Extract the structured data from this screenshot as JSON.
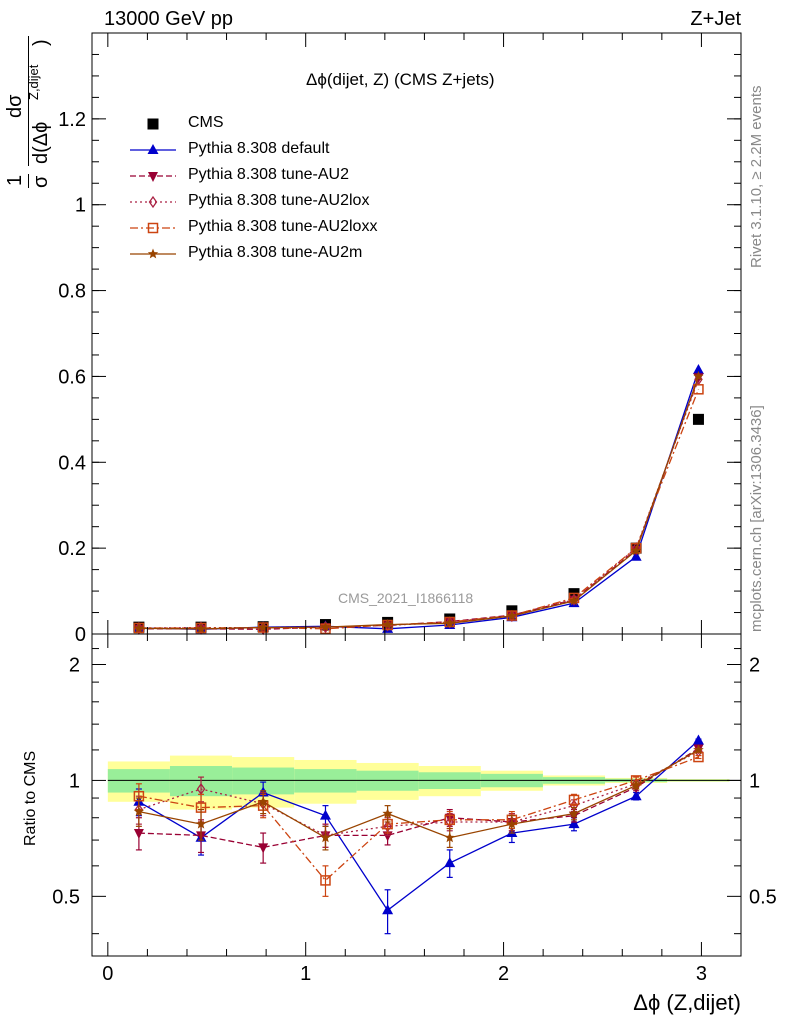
{
  "header": {
    "left": "13000 GeV pp",
    "right": "Z+Jet"
  },
  "side_notes": {
    "rivet": "Rivet 3.1.10, ≥ 2.2M events",
    "mcplots": "mcplots.cern.ch [arXiv:1306.3436]"
  },
  "plot_title": "Δϕ(dijet, Z) (CMS Z+jets)",
  "watermark": "CMS_2021_I1866118",
  "axes": {
    "x_label": "Δϕ (Z,dijet)",
    "ratio_y_label": "Ratio to CMS",
    "main_y_label_parts": {
      "one": "1",
      "sigma": "σ",
      "dsigma": "dσ",
      "denominator": "d(Δϕ",
      "superscript": "Z,dijet",
      "close": ")"
    }
  },
  "legend": [
    {
      "key": "cms",
      "label": "CMS"
    },
    {
      "key": "default",
      "label": "Pythia 8.308 default"
    },
    {
      "key": "au2",
      "label": "Pythia 8.308 tune-AU2"
    },
    {
      "key": "au2lox",
      "label": "Pythia 8.308 tune-AU2lox"
    },
    {
      "key": "au2loxx",
      "label": "Pythia 8.308 tune-AU2loxx"
    },
    {
      "key": "au2m",
      "label": "Pythia 8.308 tune-AU2m"
    }
  ],
  "colors": {
    "cms": "#000000",
    "default": "#0000cc",
    "au2": "#990033",
    "au2lox": "#aa2244",
    "au2loxx": "#cc4411",
    "au2m": "#994400",
    "band_inner": "#99ee99",
    "band_outer": "#ffff99"
  },
  "chart_data": [
    {
      "type": "line",
      "panel": "main",
      "x_range": [
        -0.08,
        3.2
      ],
      "y_range": [
        0,
        1.4
      ],
      "y_ticks": [
        0,
        0.2,
        0.4,
        0.6,
        0.8,
        1,
        1.2
      ],
      "y_tick_labels": [
        "0",
        "0.2",
        "0.4",
        "0.6",
        "0.8",
        "1",
        "1.2"
      ],
      "x": [
        0.157,
        0.471,
        0.785,
        1.1,
        1.414,
        1.728,
        2.042,
        2.356,
        2.67,
        2.985
      ],
      "series": [
        {
          "name": "CMS",
          "key": "cms",
          "marker": "square",
          "line": "none",
          "values": [
            0.016,
            0.016,
            0.017,
            0.022,
            0.027,
            0.035,
            0.054,
            0.094,
            0.2,
            0.5
          ]
        },
        {
          "name": "Pythia 8.308 default",
          "key": "default",
          "marker": "triangle-up",
          "line": "solid",
          "values": [
            0.014,
            0.011,
            0.016,
            0.018,
            0.012,
            0.021,
            0.039,
            0.072,
            0.18,
            0.615
          ]
        },
        {
          "name": "Pythia 8.308 tune-AU2",
          "key": "au2",
          "marker": "triangle-down",
          "line": "dashed",
          "values": [
            0.012,
            0.012,
            0.011,
            0.016,
            0.02,
            0.029,
            0.044,
            0.08,
            0.196,
            0.598
          ]
        },
        {
          "name": "Pythia 8.308 tune-AU2lox",
          "key": "au2lox",
          "marker": "diamond-open",
          "line": "dotted",
          "values": [
            0.014,
            0.015,
            0.015,
            0.016,
            0.02,
            0.027,
            0.042,
            0.08,
            0.2,
            0.593
          ]
        },
        {
          "name": "Pythia 8.308 tune-AU2loxx",
          "key": "au2loxx",
          "marker": "square-open",
          "line": "dashdot",
          "values": [
            0.014,
            0.014,
            0.015,
            0.012,
            0.021,
            0.028,
            0.043,
            0.084,
            0.2,
            0.57
          ]
        },
        {
          "name": "Pythia 8.308 tune-AU2m",
          "key": "au2m",
          "marker": "star",
          "line": "solid",
          "values": [
            0.013,
            0.012,
            0.015,
            0.016,
            0.022,
            0.025,
            0.042,
            0.077,
            0.194,
            0.6
          ]
        }
      ]
    },
    {
      "type": "line",
      "panel": "ratio",
      "x_range": [
        -0.08,
        3.2
      ],
      "y_range": [
        0.35,
        2.4
      ],
      "y_scale": "log",
      "x_ticks": [
        0,
        1,
        2,
        3
      ],
      "x_tick_labels": [
        "0",
        "1",
        "2",
        "3"
      ],
      "y_ticks": [
        0.5,
        1,
        2
      ],
      "y_tick_labels": [
        "0.5",
        "1",
        "2"
      ],
      "x": [
        0.157,
        0.471,
        0.785,
        1.1,
        1.414,
        1.728,
        2.042,
        2.356,
        2.67,
        2.985
      ],
      "bands": {
        "edges": [
          0,
          0.314,
          0.628,
          0.942,
          1.257,
          1.571,
          1.885,
          2.199,
          2.513,
          2.827,
          3.142
        ],
        "inner": [
          0.07,
          0.09,
          0.08,
          0.07,
          0.06,
          0.05,
          0.04,
          0.02,
          0.01,
          0.005
        ],
        "outer": [
          0.12,
          0.16,
          0.15,
          0.13,
          0.11,
          0.09,
          0.06,
          0.03,
          0.015,
          0.008
        ]
      },
      "series": [
        {
          "key": "default",
          "values": [
            0.88,
            0.71,
            0.93,
            0.81,
            0.46,
            0.61,
            0.73,
            0.77,
            0.91,
            1.27
          ],
          "errors": [
            0.07,
            0.07,
            0.06,
            0.05,
            0.06,
            0.05,
            0.04,
            0.03,
            0.02,
            0.01
          ]
        },
        {
          "key": "au2",
          "values": [
            0.73,
            0.72,
            0.67,
            0.72,
            0.72,
            0.8,
            0.78,
            0.81,
            0.96,
            1.21
          ],
          "errors": [
            0.07,
            0.07,
            0.06,
            0.05,
            0.04,
            0.04,
            0.04,
            0.03,
            0.02,
            0.01
          ]
        },
        {
          "key": "au2lox",
          "values": [
            0.84,
            0.95,
            0.87,
            0.72,
            0.76,
            0.78,
            0.78,
            0.86,
            0.98,
            1.19
          ],
          "errors": [
            0.07,
            0.07,
            0.06,
            0.05,
            0.04,
            0.04,
            0.04,
            0.03,
            0.02,
            0.01
          ]
        },
        {
          "key": "au2loxx",
          "values": [
            0.91,
            0.85,
            0.86,
            0.55,
            0.77,
            0.79,
            0.79,
            0.89,
            1.0,
            1.15
          ],
          "errors": [
            0.07,
            0.07,
            0.06,
            0.05,
            0.04,
            0.04,
            0.04,
            0.03,
            0.02,
            0.01
          ]
        },
        {
          "key": "au2m",
          "values": [
            0.83,
            0.77,
            0.88,
            0.71,
            0.82,
            0.71,
            0.77,
            0.82,
            0.97,
            1.2
          ],
          "errors": [
            0.07,
            0.07,
            0.06,
            0.05,
            0.04,
            0.04,
            0.04,
            0.03,
            0.02,
            0.01
          ]
        }
      ]
    }
  ]
}
